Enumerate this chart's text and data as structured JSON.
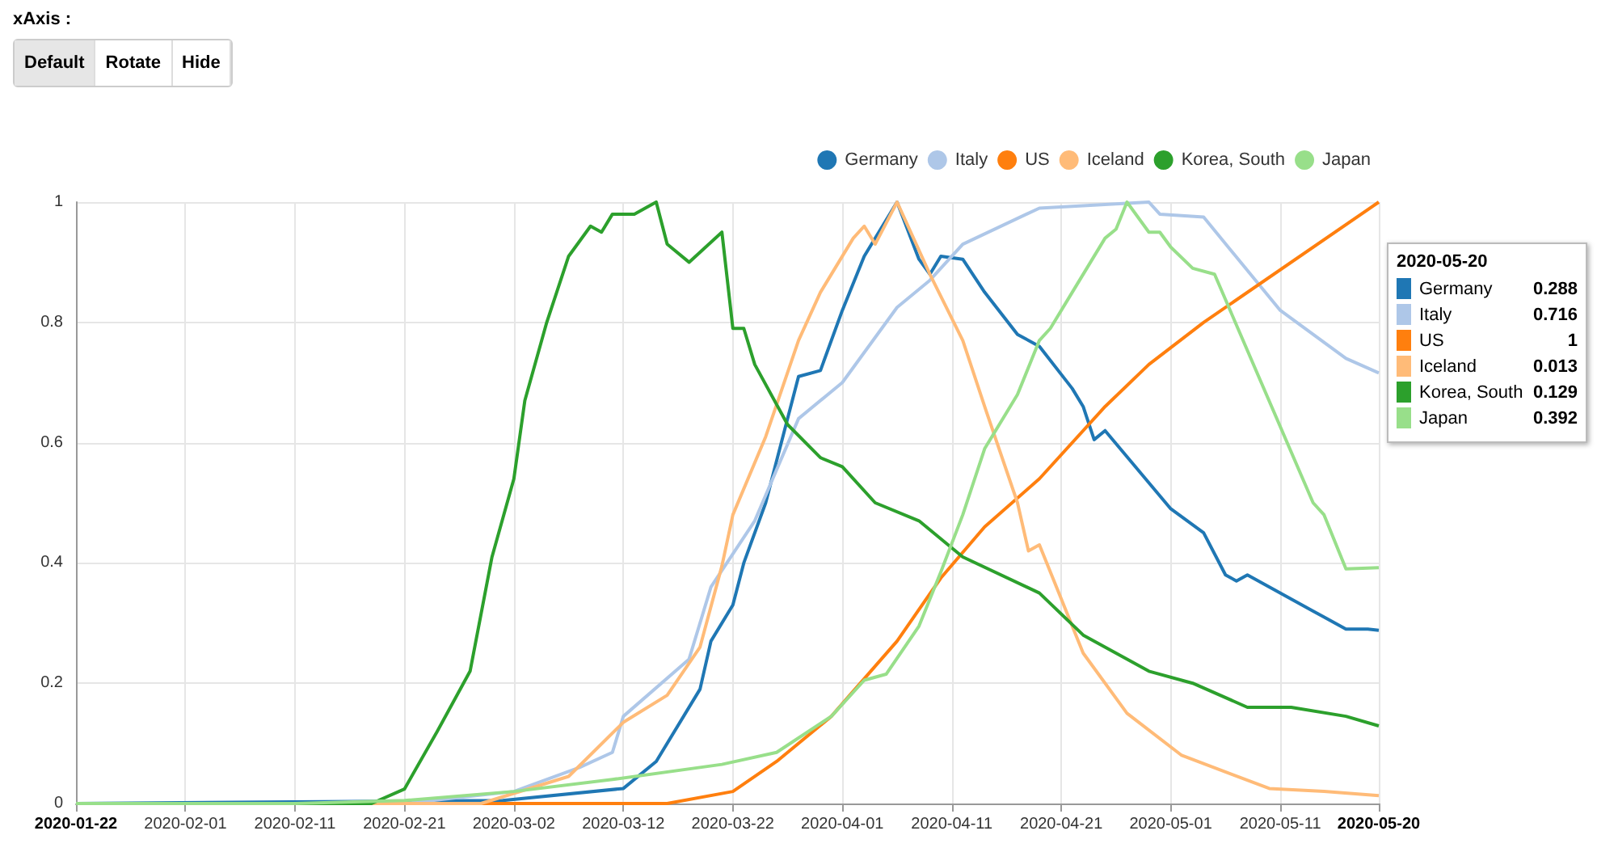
{
  "chart_data": {
    "type": "line",
    "annotations": [
      "xAxis :",
      "Default",
      "Rotate",
      "Hide",
      "2020-05-20",
      "0.288",
      "0.716",
      "1",
      "0.013",
      "0.129",
      "0.392"
    ],
    "xlim": [
      "2020-01-22",
      "2020-05-20"
    ],
    "xticks": [
      "2020-01-22",
      "2020-02-01",
      "2020-02-11",
      "2020-02-21",
      "2020-03-02",
      "2020-03-12",
      "2020-03-22",
      "2020-04-01",
      "2020-04-11",
      "2020-04-21",
      "2020-05-01",
      "2020-05-11",
      "2020-05-20"
    ],
    "ylim": [
      0,
      1
    ],
    "yticks": [
      0,
      0.2,
      0.4,
      0.6,
      0.8,
      1
    ],
    "grid": true,
    "legend": "top right",
    "series": [
      {
        "name": "Germany",
        "color": "#1f77b4",
        "x": [
          "2020-01-22",
          "2020-03-01",
          "2020-03-12",
          "2020-03-15",
          "2020-03-19",
          "2020-03-20",
          "2020-03-22",
          "2020-03-23",
          "2020-03-25",
          "2020-03-27",
          "2020-03-28",
          "2020-03-30",
          "2020-04-01",
          "2020-04-03",
          "2020-04-06",
          "2020-04-08",
          "2020-04-09",
          "2020-04-10",
          "2020-04-12",
          "2020-04-14",
          "2020-04-17",
          "2020-04-19",
          "2020-04-22",
          "2020-04-23",
          "2020-04-24",
          "2020-04-25",
          "2020-05-01",
          "2020-05-04",
          "2020-05-06",
          "2020-05-07",
          "2020-05-08",
          "2020-05-14",
          "2020-05-17",
          "2020-05-19",
          "2020-05-20"
        ],
        "values": [
          0,
          0.005,
          0.025,
          0.07,
          0.19,
          0.27,
          0.33,
          0.4,
          0.5,
          0.64,
          0.71,
          0.72,
          0.82,
          0.91,
          1,
          0.905,
          0.88,
          0.91,
          0.905,
          0.85,
          0.78,
          0.76,
          0.69,
          0.66,
          0.605,
          0.62,
          0.49,
          0.45,
          0.38,
          0.37,
          0.38,
          0.32,
          0.29,
          0.29,
          0.288
        ]
      },
      {
        "name": "Italy",
        "color": "#aec7e8",
        "x": [
          "2020-01-22",
          "2020-02-21",
          "2020-03-02",
          "2020-03-08",
          "2020-03-11",
          "2020-03-12",
          "2020-03-18",
          "2020-03-20",
          "2020-03-24",
          "2020-03-28",
          "2020-04-01",
          "2020-04-06",
          "2020-04-09",
          "2020-04-12",
          "2020-04-19",
          "2020-04-29",
          "2020-04-30",
          "2020-05-04",
          "2020-05-11",
          "2020-05-17",
          "2020-05-20"
        ],
        "values": [
          0,
          0,
          0.02,
          0.06,
          0.085,
          0.145,
          0.24,
          0.36,
          0.47,
          0.64,
          0.7,
          0.825,
          0.87,
          0.93,
          0.99,
          1,
          0.98,
          0.975,
          0.82,
          0.74,
          0.716
        ]
      },
      {
        "name": "US",
        "color": "#ff7f0e",
        "x": [
          "2020-01-22",
          "2020-03-16",
          "2020-03-22",
          "2020-03-26",
          "2020-03-31",
          "2020-04-06",
          "2020-04-10",
          "2020-04-14",
          "2020-04-19",
          "2020-04-25",
          "2020-04-29",
          "2020-05-04",
          "2020-05-20"
        ],
        "values": [
          0,
          0,
          0.02,
          0.07,
          0.145,
          0.27,
          0.375,
          0.46,
          0.54,
          0.66,
          0.73,
          0.8,
          1
        ]
      },
      {
        "name": "Iceland",
        "color": "#ffbb78",
        "x": [
          "2020-01-22",
          "2020-02-28",
          "2020-03-07",
          "2020-03-12",
          "2020-03-16",
          "2020-03-19",
          "2020-03-21",
          "2020-03-22",
          "2020-03-25",
          "2020-03-28",
          "2020-03-30",
          "2020-04-02",
          "2020-04-03",
          "2020-04-04",
          "2020-04-06",
          "2020-04-09",
          "2020-04-12",
          "2020-04-14",
          "2020-04-17",
          "2020-04-18",
          "2020-04-19",
          "2020-04-21",
          "2020-04-23",
          "2020-04-27",
          "2020-05-02",
          "2020-05-10",
          "2020-05-15",
          "2020-05-20"
        ],
        "values": [
          0,
          0,
          0.045,
          0.135,
          0.18,
          0.26,
          0.395,
          0.48,
          0.61,
          0.77,
          0.85,
          0.94,
          0.96,
          0.93,
          1,
          0.88,
          0.77,
          0.66,
          0.5,
          0.42,
          0.43,
          0.34,
          0.25,
          0.15,
          0.08,
          0.025,
          0.02,
          0.013
        ]
      },
      {
        "name": "Korea, South",
        "color": "#2ca02c",
        "x": [
          "2020-01-22",
          "2020-02-18",
          "2020-02-21",
          "2020-02-24",
          "2020-02-27",
          "2020-02-29",
          "2020-03-02",
          "2020-03-03",
          "2020-03-05",
          "2020-03-07",
          "2020-03-09",
          "2020-03-10",
          "2020-03-11",
          "2020-03-13",
          "2020-03-15",
          "2020-03-16",
          "2020-03-18",
          "2020-03-21",
          "2020-03-22",
          "2020-03-23",
          "2020-03-24",
          "2020-03-27",
          "2020-03-30",
          "2020-04-01",
          "2020-04-04",
          "2020-04-08",
          "2020-04-12",
          "2020-04-19",
          "2020-04-23",
          "2020-04-29",
          "2020-05-03",
          "2020-05-08",
          "2020-05-12",
          "2020-05-17",
          "2020-05-20"
        ],
        "values": [
          0,
          0,
          0.024,
          0.12,
          0.22,
          0.41,
          0.54,
          0.67,
          0.8,
          0.91,
          0.96,
          0.95,
          0.98,
          0.98,
          1,
          0.93,
          0.9,
          0.95,
          0.79,
          0.79,
          0.73,
          0.63,
          0.575,
          0.56,
          0.5,
          0.47,
          0.41,
          0.35,
          0.28,
          0.22,
          0.2,
          0.16,
          0.16,
          0.145,
          0.129
        ]
      },
      {
        "name": "Japan",
        "color": "#98df8a",
        "x": [
          "2020-01-22",
          "2020-02-11",
          "2020-02-21",
          "2020-03-02",
          "2020-03-11",
          "2020-03-21",
          "2020-03-26",
          "2020-03-31",
          "2020-04-03",
          "2020-04-05",
          "2020-04-08",
          "2020-04-10",
          "2020-04-12",
          "2020-04-14",
          "2020-04-17",
          "2020-04-19",
          "2020-04-20",
          "2020-04-22",
          "2020-04-25",
          "2020-04-26",
          "2020-04-27",
          "2020-04-29",
          "2020-04-30",
          "2020-05-01",
          "2020-05-03",
          "2020-05-05",
          "2020-05-14",
          "2020-05-15",
          "2020-05-17",
          "2020-05-20"
        ],
        "values": [
          0,
          0,
          0.005,
          0.02,
          0.04,
          0.065,
          0.085,
          0.145,
          0.205,
          0.215,
          0.295,
          0.385,
          0.48,
          0.59,
          0.68,
          0.77,
          0.79,
          0.85,
          0.94,
          0.955,
          1,
          0.95,
          0.95,
          0.925,
          0.89,
          0.88,
          0.5,
          0.48,
          0.39,
          0.392
        ]
      }
    ]
  }
}
